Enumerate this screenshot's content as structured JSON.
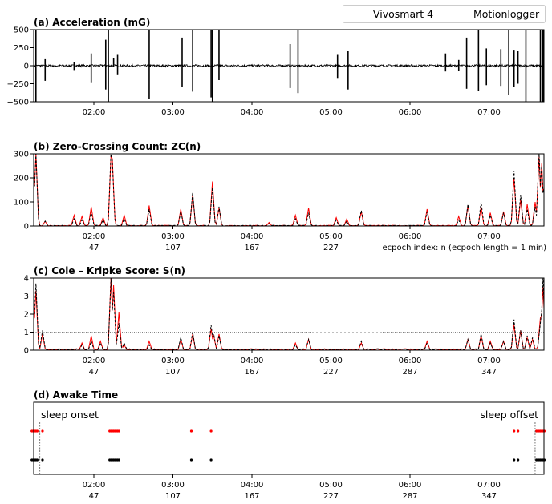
{
  "chart_data": {
    "type": "line",
    "legend": {
      "placement": "top-right",
      "entries": [
        {
          "name": "Vivosmart 4",
          "color": "#000000"
        },
        {
          "name": "Motionlogger",
          "color": "#ff0000"
        }
      ]
    },
    "x_axis": {
      "epoch_range": [
        0,
        389
      ],
      "time_ticks": [
        "02:00",
        "03:00",
        "04:00",
        "05:00",
        "06:00",
        "07:00"
      ],
      "tick_epochs": [
        47,
        107,
        167,
        227,
        287,
        347
      ],
      "epoch_ticks": [
        "47",
        "107",
        "167",
        "227",
        "287",
        "347"
      ],
      "epoch_label": "ecpoch index: n (ecpoch length = 1 min)"
    },
    "panels": [
      {
        "id": "a",
        "title": "(a) Acceleration (mG)",
        "ylim": [
          -500,
          500
        ],
        "yticks": [
          "500",
          "250",
          "0",
          "−250",
          "−500"
        ],
        "ytick_values": [
          500,
          250,
          0,
          -250,
          -500
        ],
        "spikes": [
          [
            1,
            450,
            -450
          ],
          [
            3,
            500,
            -500
          ],
          [
            10,
            90,
            -210
          ],
          [
            32,
            50,
            -60
          ],
          [
            45,
            170,
            -230
          ],
          [
            56,
            360,
            -330
          ],
          [
            58,
            500,
            -500
          ],
          [
            62,
            110,
            -20
          ],
          [
            65,
            150,
            -120
          ],
          [
            89,
            500,
            -460
          ],
          [
            114,
            390,
            -300
          ],
          [
            122,
            500,
            -360
          ],
          [
            136,
            500,
            -440
          ],
          [
            137,
            500,
            -500
          ],
          [
            142,
            500,
            -200
          ],
          [
            196,
            300,
            -310
          ],
          [
            202,
            500,
            -380
          ],
          [
            232,
            150,
            -170
          ],
          [
            240,
            200,
            -330
          ],
          [
            314,
            170,
            -80
          ],
          [
            324,
            80,
            -70
          ],
          [
            330,
            390,
            -320
          ],
          [
            339,
            500,
            -350
          ],
          [
            345,
            240,
            -270
          ],
          [
            356,
            230,
            -280
          ],
          [
            362,
            500,
            -400
          ],
          [
            366,
            210,
            -300
          ],
          [
            369,
            200,
            -250
          ],
          [
            375,
            500,
            -500
          ],
          [
            386,
            500,
            -500
          ],
          [
            388,
            500,
            -500
          ]
        ]
      },
      {
        "id": "b",
        "title": "(b) Zero-Crossing Count: ZC(n)",
        "ylim": [
          0,
          300
        ],
        "yticks": [
          "300",
          "200",
          "100",
          "0"
        ],
        "ytick_values": [
          300,
          200,
          100,
          0
        ],
        "peaks": [
          [
            1,
            300,
            250
          ],
          [
            3,
            300,
            300
          ],
          [
            10,
            20,
            20
          ],
          [
            32,
            30,
            45
          ],
          [
            38,
            25,
            40
          ],
          [
            45,
            60,
            80
          ],
          [
            54,
            25,
            35
          ],
          [
            60,
            300,
            290
          ],
          [
            61,
            270,
            280
          ],
          [
            70,
            30,
            45
          ],
          [
            89,
            70,
            85
          ],
          [
            113,
            60,
            70
          ],
          [
            122,
            140,
            130
          ],
          [
            137,
            160,
            185
          ],
          [
            142,
            80,
            75
          ],
          [
            180,
            10,
            15
          ],
          [
            200,
            30,
            45
          ],
          [
            210,
            55,
            75
          ],
          [
            231,
            25,
            35
          ],
          [
            239,
            20,
            30
          ],
          [
            250,
            65,
            60
          ],
          [
            300,
            60,
            70
          ],
          [
            324,
            25,
            40
          ],
          [
            331,
            90,
            85
          ],
          [
            341,
            100,
            80
          ],
          [
            348,
            45,
            55
          ],
          [
            358,
            55,
            60
          ],
          [
            366,
            230,
            200
          ],
          [
            371,
            130,
            110
          ],
          [
            376,
            70,
            90
          ],
          [
            382,
            80,
            100
          ],
          [
            385,
            300,
            290
          ],
          [
            387,
            250,
            260
          ],
          [
            389,
            160,
            160
          ]
        ]
      },
      {
        "id": "c",
        "title": "(c) Cole – Kripke Score: S(n)",
        "ylim": [
          0,
          4
        ],
        "threshold": 1,
        "yticks": [
          "4",
          "3",
          "2",
          "1",
          "0"
        ],
        "ytick_values": [
          4,
          3,
          2,
          1,
          0
        ],
        "peaks": [
          [
            0,
            3.8,
            3.0
          ],
          [
            3,
            3.7,
            3.3
          ],
          [
            8,
            1.1,
            0.9
          ],
          [
            38,
            0.3,
            0.4
          ],
          [
            45,
            0.5,
            0.8
          ],
          [
            52,
            0.4,
            0.5
          ],
          [
            60,
            4.0,
            4.0
          ],
          [
            62,
            3.2,
            3.6
          ],
          [
            66,
            1.5,
            2.1
          ],
          [
            70,
            0.4,
            0.3
          ],
          [
            89,
            0.3,
            0.5
          ],
          [
            113,
            0.7,
            0.6
          ],
          [
            122,
            1.0,
            0.9
          ],
          [
            136,
            1.4,
            1.2
          ],
          [
            138,
            0.9,
            0.8
          ],
          [
            142,
            0.8,
            0.9
          ],
          [
            200,
            0.3,
            0.4
          ],
          [
            210,
            0.6,
            0.6
          ],
          [
            250,
            0.5,
            0.4
          ],
          [
            300,
            0.4,
            0.5
          ],
          [
            331,
            0.6,
            0.6
          ],
          [
            341,
            0.9,
            0.8
          ],
          [
            348,
            0.4,
            0.5
          ],
          [
            358,
            0.5,
            0.5
          ],
          [
            366,
            1.7,
            1.4
          ],
          [
            371,
            1.1,
            1.1
          ],
          [
            376,
            0.8,
            0.7
          ],
          [
            380,
            0.7,
            0.6
          ],
          [
            386,
            1.5,
            1.8
          ],
          [
            388,
            4.0,
            3.5
          ]
        ]
      },
      {
        "id": "d",
        "title": "(d) Awake Time",
        "awake_epochs": [
          0,
          1,
          2,
          3,
          4,
          8,
          59,
          60,
          61,
          62,
          63,
          64,
          65,
          66,
          121,
          136,
          366,
          369,
          383,
          384,
          385,
          386,
          387,
          388,
          389
        ],
        "sleep_onset_epoch": 6,
        "sleep_offset_epoch": 382,
        "annotations": [
          "sleep onset",
          "sleep offset"
        ]
      }
    ]
  }
}
